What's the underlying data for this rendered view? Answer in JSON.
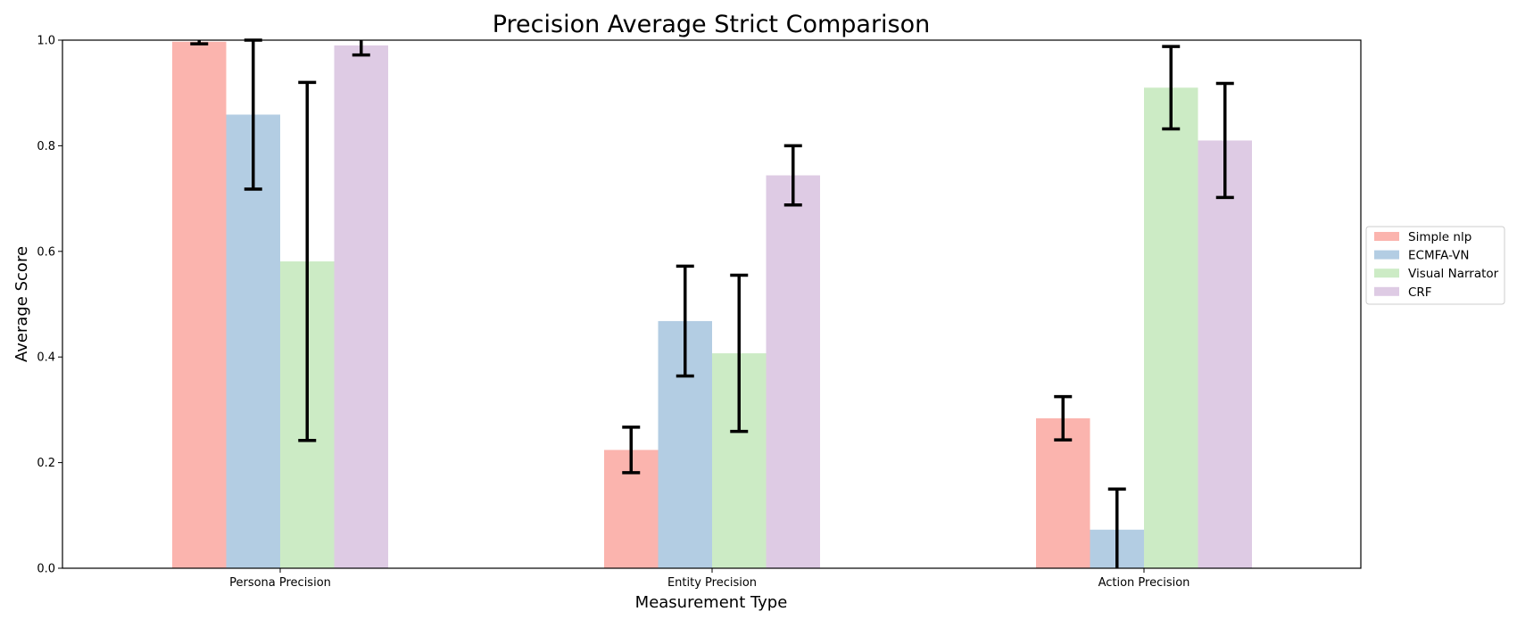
{
  "chart_data": {
    "type": "bar",
    "title": "Precision Average Strict Comparison",
    "xlabel": "Measurement Type",
    "ylabel": "Average Score",
    "categories": [
      "Persona Precision",
      "Entity Precision",
      "Action Precision"
    ],
    "ylim": [
      0,
      1
    ],
    "yticks": [
      "0.0",
      "0.2",
      "0.4",
      "0.6",
      "0.8",
      "1.0"
    ],
    "grid": false,
    "legend_position": "right",
    "series": [
      {
        "name": "Simple nlp",
        "color": "#fbb4ae",
        "values": [
          0.997,
          0.224,
          0.284
        ],
        "errors": [
          0.004,
          0.043,
          0.041
        ]
      },
      {
        "name": "ECMFA-VN",
        "color": "#b3cde3",
        "values": [
          0.859,
          0.468,
          0.073
        ],
        "errors": [
          0.141,
          0.104,
          0.077
        ]
      },
      {
        "name": "Visual Narrator",
        "color": "#ccebc5",
        "values": [
          0.581,
          0.407,
          0.91
        ],
        "errors": [
          0.339,
          0.148,
          0.078
        ]
      },
      {
        "name": "CRF",
        "color": "#decbe4",
        "values": [
          0.99,
          0.744,
          0.81
        ],
        "errors": [
          0.018,
          0.056,
          0.108
        ]
      }
    ]
  }
}
